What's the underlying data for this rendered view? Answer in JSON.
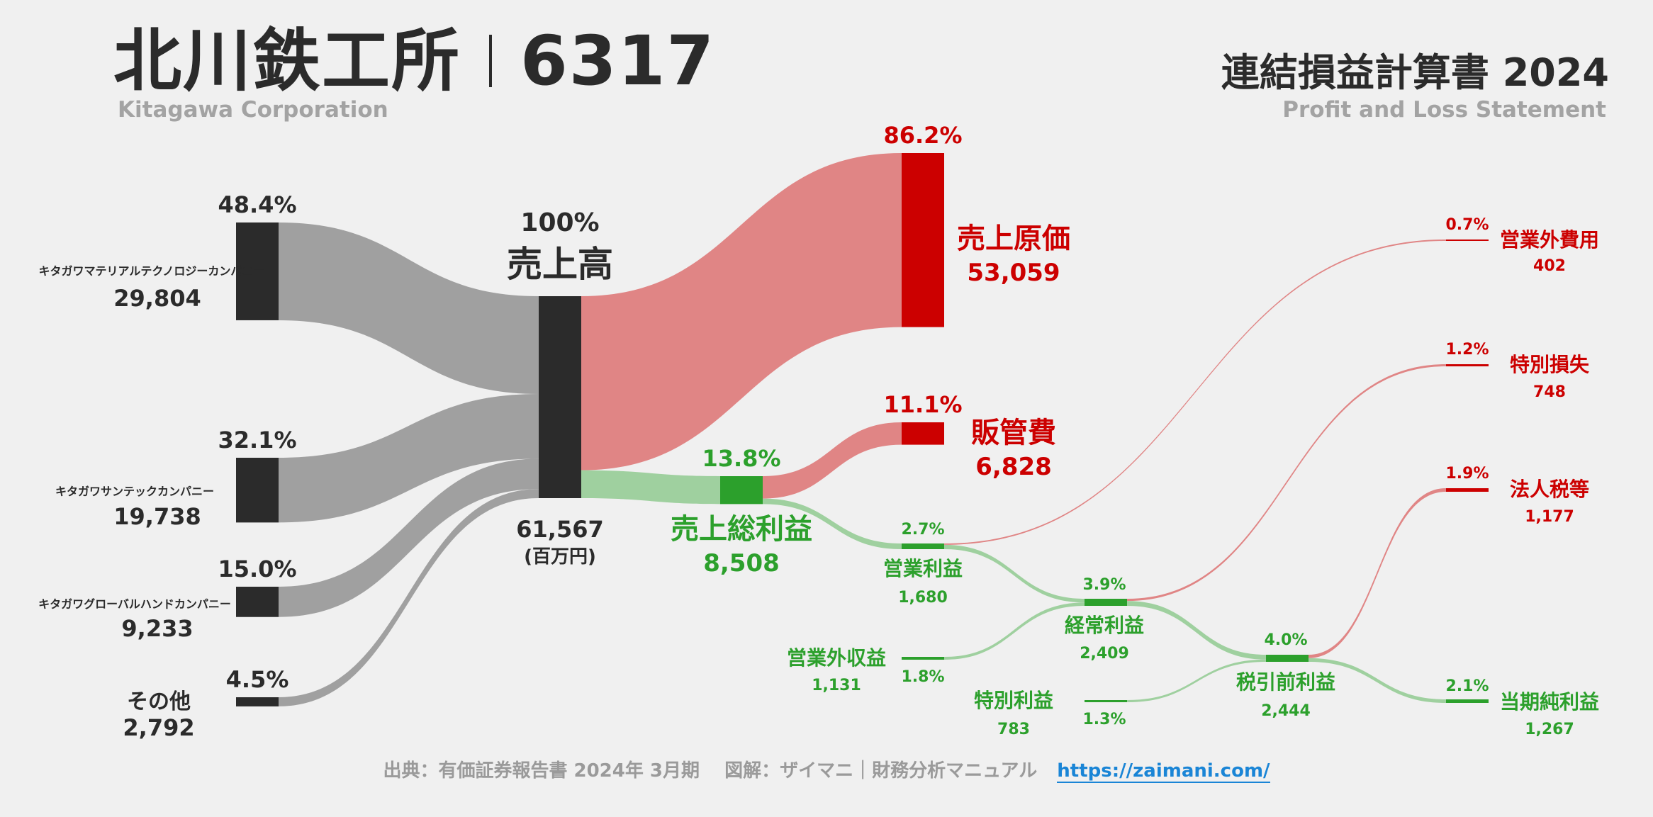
{
  "header": {
    "company_name": "北川鉄工所",
    "ticker": "6317",
    "company_name_en": "Kitagawa Corporation",
    "statement_title": "連結損益計算書 2024",
    "statement_title_en": "Profit and Loss Statement"
  },
  "footer": {
    "source": "出典：有価証券報告書 2024年 3月期　 図解：ザイマニ｜財務分析マニュアル",
    "url": "https://zaimani.com/"
  },
  "colors": {
    "revenue": "#2b2b2b",
    "revenue_flow": "#a0a0a0",
    "cost": "#cc0000",
    "cost_flow": "#e08585",
    "profit": "#2ca02c",
    "profit_flow": "#9fd09f",
    "background": "#f0f0f0"
  },
  "chart_data": {
    "type": "sankey",
    "unit": "(百万円)",
    "nodes": [
      {
        "id": "seg1",
        "label": "キタガワマテリアルテクノロジーカンパニー",
        "value": 29804,
        "value_text": "29,804",
        "pct": "48.4%",
        "category": "revenue"
      },
      {
        "id": "seg2",
        "label": "キタガワサンテックカンパニー",
        "value": 19738,
        "value_text": "19,738",
        "pct": "32.1%",
        "category": "revenue"
      },
      {
        "id": "seg3",
        "label": "キタガワグローバルハンドカンパニー",
        "value": 9233,
        "value_text": "9,233",
        "pct": "15.0%",
        "category": "revenue"
      },
      {
        "id": "seg4",
        "label": "その他",
        "value": 2792,
        "value_text": "2,792",
        "pct": "4.5%",
        "category": "revenue"
      },
      {
        "id": "sales",
        "label": "売上高",
        "value": 61567,
        "value_text": "61,567",
        "pct": "100%",
        "category": "revenue"
      },
      {
        "id": "cogs",
        "label": "売上原価",
        "value": 53059,
        "value_text": "53,059",
        "pct": "86.2%",
        "category": "cost"
      },
      {
        "id": "gross",
        "label": "売上総利益",
        "value": 8508,
        "value_text": "8,508",
        "pct": "13.8%",
        "category": "profit"
      },
      {
        "id": "sga",
        "label": "販管費",
        "value": 6828,
        "value_text": "6,828",
        "pct": "11.1%",
        "category": "cost"
      },
      {
        "id": "op",
        "label": "営業利益",
        "value": 1680,
        "value_text": "1,680",
        "pct": "2.7%",
        "category": "profit"
      },
      {
        "id": "nonop_inc",
        "label": "営業外収益",
        "value": 1131,
        "value_text": "1,131",
        "pct": "1.8%",
        "category": "profit"
      },
      {
        "id": "nonop_exp",
        "label": "営業外費用",
        "value": 402,
        "value_text": "402",
        "pct": "0.7%",
        "category": "cost"
      },
      {
        "id": "ordinary",
        "label": "経常利益",
        "value": 2409,
        "value_text": "2,409",
        "pct": "3.9%",
        "category": "profit"
      },
      {
        "id": "ext_gain",
        "label": "特別利益",
        "value": 783,
        "value_text": "783",
        "pct": "1.3%",
        "category": "profit"
      },
      {
        "id": "ext_loss",
        "label": "特別損失",
        "value": 748,
        "value_text": "748",
        "pct": "1.2%",
        "category": "cost"
      },
      {
        "id": "pretax",
        "label": "税引前利益",
        "value": 2444,
        "value_text": "2,444",
        "pct": "4.0%",
        "category": "profit"
      },
      {
        "id": "tax",
        "label": "法人税等",
        "value": 1177,
        "value_text": "1,177",
        "pct": "1.9%",
        "category": "cost"
      },
      {
        "id": "net",
        "label": "当期純利益",
        "value": 1267,
        "value_text": "1,267",
        "pct": "2.1%",
        "category": "profit"
      }
    ],
    "links": [
      {
        "source": "seg1",
        "target": "sales",
        "value": 29804
      },
      {
        "source": "seg2",
        "target": "sales",
        "value": 19738
      },
      {
        "source": "seg3",
        "target": "sales",
        "value": 9233
      },
      {
        "source": "seg4",
        "target": "sales",
        "value": 2792
      },
      {
        "source": "sales",
        "target": "cogs",
        "value": 53059
      },
      {
        "source": "sales",
        "target": "gross",
        "value": 8508
      },
      {
        "source": "gross",
        "target": "sga",
        "value": 6828
      },
      {
        "source": "gross",
        "target": "op",
        "value": 1680
      },
      {
        "source": "op",
        "target": "nonop_exp",
        "value": 402
      },
      {
        "source": "op",
        "target": "ordinary",
        "value": 1278
      },
      {
        "source": "nonop_inc",
        "target": "ordinary",
        "value": 1131
      },
      {
        "source": "ordinary",
        "target": "ext_loss",
        "value": 748
      },
      {
        "source": "ordinary",
        "target": "pretax",
        "value": 1661
      },
      {
        "source": "ext_gain",
        "target": "pretax",
        "value": 783
      },
      {
        "source": "pretax",
        "target": "tax",
        "value": 1177
      },
      {
        "source": "pretax",
        "target": "net",
        "value": 1267
      }
    ]
  }
}
